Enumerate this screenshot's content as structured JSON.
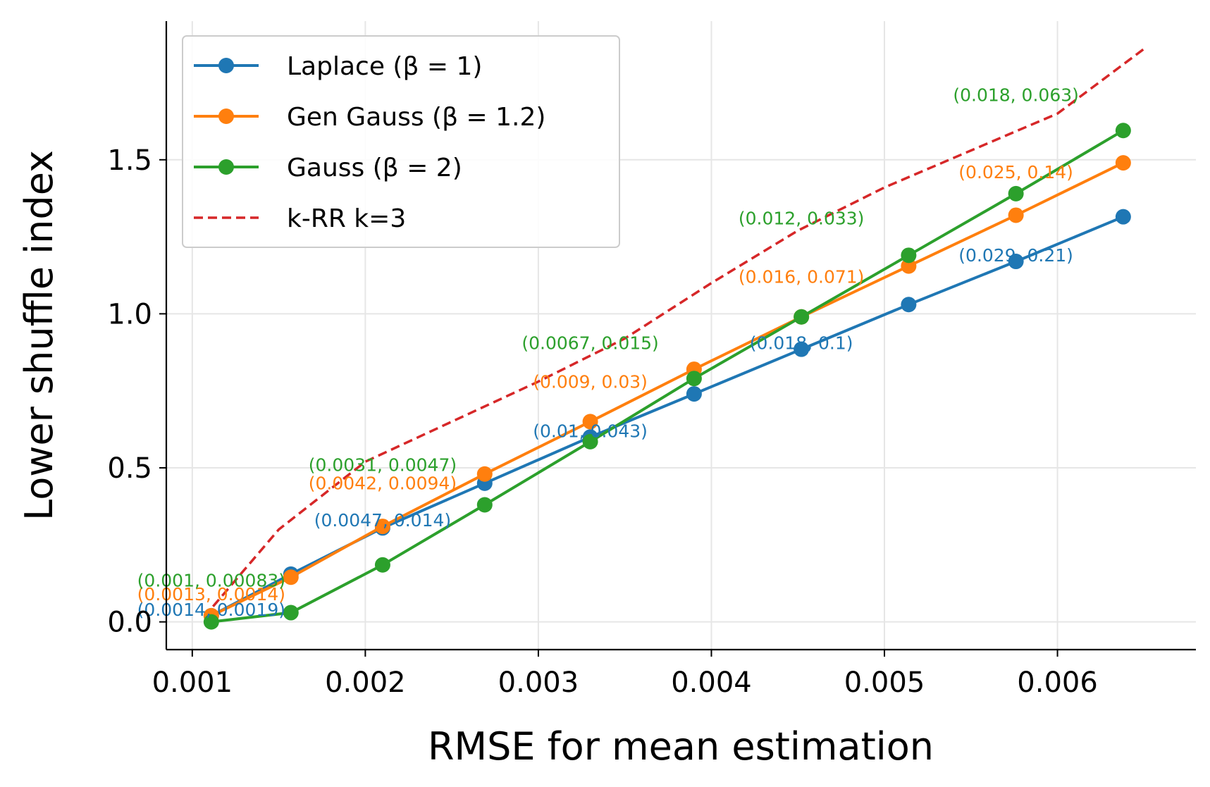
{
  "chart_data": {
    "type": "line",
    "xlabel": "RMSE for mean estimation",
    "ylabel": "Lower shuffle index",
    "xlim": [
      0.00085,
      0.0068
    ],
    "ylim": [
      -0.09,
      1.95
    ],
    "grid": true,
    "legend_position": "top-left",
    "x_ticks": [
      {
        "value": 0.001,
        "label": "0.001"
      },
      {
        "value": 0.002,
        "label": "0.002"
      },
      {
        "value": 0.003,
        "label": "0.003"
      },
      {
        "value": 0.004,
        "label": "0.004"
      },
      {
        "value": 0.005,
        "label": "0.005"
      },
      {
        "value": 0.006,
        "label": "0.006"
      }
    ],
    "y_ticks": [
      {
        "value": 0.0,
        "label": "0.0"
      },
      {
        "value": 0.5,
        "label": "0.5"
      },
      {
        "value": 1.0,
        "label": "1.0"
      },
      {
        "value": 1.5,
        "label": "1.5"
      }
    ],
    "series": [
      {
        "name": "Laplace (β = 1)",
        "color": "#1f77b4",
        "style": "solid-marker",
        "x": [
          0.00111,
          0.00157,
          0.0021,
          0.00269,
          0.0033,
          0.0039,
          0.00452,
          0.00514,
          0.00576,
          0.00638
        ],
        "y": [
          0.02,
          0.155,
          0.305,
          0.45,
          0.6,
          0.74,
          0.885,
          1.03,
          1.17,
          1.315
        ]
      },
      {
        "name": "Gen Gauss (β = 1.2)",
        "color": "#ff7f0e",
        "style": "solid-marker",
        "x": [
          0.00111,
          0.00157,
          0.0021,
          0.00269,
          0.0033,
          0.0039,
          0.00452,
          0.00514,
          0.00576,
          0.00638
        ],
        "y": [
          0.02,
          0.145,
          0.31,
          0.48,
          0.65,
          0.82,
          0.99,
          1.155,
          1.32,
          1.49
        ]
      },
      {
        "name": "Gauss (β = 2)",
        "color": "#2ca02c",
        "style": "solid-marker",
        "x": [
          0.00111,
          0.00157,
          0.0021,
          0.00269,
          0.0033,
          0.0039,
          0.00452,
          0.00514,
          0.00576,
          0.00638
        ],
        "y": [
          0.0,
          0.03,
          0.185,
          0.38,
          0.585,
          0.79,
          0.99,
          1.19,
          1.39,
          1.595
        ]
      },
      {
        "name": "k-RR k=3",
        "color": "#d62728",
        "style": "dashed",
        "x": [
          0.00112,
          0.0015,
          0.002,
          0.0025,
          0.003,
          0.0035,
          0.004,
          0.0045,
          0.005,
          0.0055,
          0.006,
          0.0065
        ],
        "y": [
          0.05,
          0.3,
          0.52,
          0.65,
          0.78,
          0.92,
          1.1,
          1.27,
          1.41,
          1.53,
          1.65,
          1.86
        ]
      }
    ],
    "annotations": [
      {
        "text": "(0.0014, 0.0019)",
        "x": 0.00111,
        "y": 0.02,
        "series": 0
      },
      {
        "text": "(0.0013, 0.0014)",
        "x": 0.00111,
        "y": 0.07,
        "series": 1
      },
      {
        "text": "(0.001, 0.00083)",
        "x": 0.00111,
        "y": 0.115,
        "series": 2
      },
      {
        "text": "(0.0047, 0.014)",
        "x": 0.0021,
        "y": 0.31,
        "series": 0
      },
      {
        "text": "(0.0042, 0.0094)",
        "x": 0.0021,
        "y": 0.43,
        "series": 1
      },
      {
        "text": "(0.0031, 0.0047)",
        "x": 0.0021,
        "y": 0.49,
        "series": 2
      },
      {
        "text": "(0.01, 0.043)",
        "x": 0.0033,
        "y": 0.6,
        "series": 0
      },
      {
        "text": "(0.009, 0.03)",
        "x": 0.0033,
        "y": 0.76,
        "series": 1
      },
      {
        "text": "(0.0067, 0.015)",
        "x": 0.0033,
        "y": 0.885,
        "series": 2
      },
      {
        "text": "(0.018, 0.1)",
        "x": 0.00452,
        "y": 0.885,
        "series": 0
      },
      {
        "text": "(0.016, 0.071)",
        "x": 0.00452,
        "y": 1.1,
        "series": 1
      },
      {
        "text": "(0.012, 0.033)",
        "x": 0.00452,
        "y": 1.29,
        "series": 2
      },
      {
        "text": "(0.029, 0.21)",
        "x": 0.00576,
        "y": 1.17,
        "series": 0
      },
      {
        "text": "(0.025, 0.14)",
        "x": 0.00576,
        "y": 1.44,
        "series": 1
      },
      {
        "text": "(0.018, 0.063)",
        "x": 0.00576,
        "y": 1.69,
        "series": 2
      }
    ]
  }
}
